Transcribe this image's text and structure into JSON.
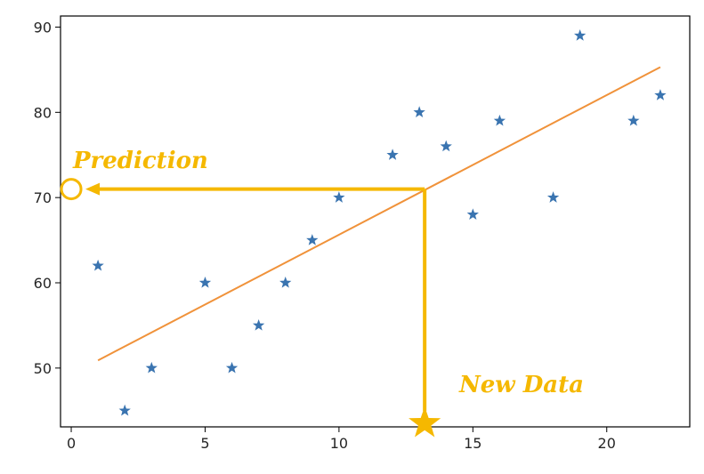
{
  "chart_data": {
    "type": "scatter",
    "title": "",
    "xlabel": "",
    "ylabel": "",
    "xlim": [
      -0.4,
      23.1
    ],
    "ylim": [
      43.1,
      91.3
    ],
    "xticks": [
      0,
      5,
      10,
      15,
      20
    ],
    "yticks": [
      50,
      60,
      70,
      80,
      90
    ],
    "grid": false,
    "series": [
      {
        "type": "scatter",
        "marker": "star",
        "color": "#3a74b0",
        "points": [
          {
            "x": 1,
            "y": 62
          },
          {
            "x": 2,
            "y": 45
          },
          {
            "x": 3,
            "y": 50
          },
          {
            "x": 5,
            "y": 60
          },
          {
            "x": 6,
            "y": 50
          },
          {
            "x": 7,
            "y": 55
          },
          {
            "x": 8,
            "y": 60
          },
          {
            "x": 9,
            "y": 65
          },
          {
            "x": 10,
            "y": 70
          },
          {
            "x": 12,
            "y": 75
          },
          {
            "x": 13,
            "y": 80
          },
          {
            "x": 14,
            "y": 76
          },
          {
            "x": 15,
            "y": 68
          },
          {
            "x": 16,
            "y": 79
          },
          {
            "x": 18,
            "y": 70
          },
          {
            "x": 19,
            "y": 89
          },
          {
            "x": 21,
            "y": 79
          },
          {
            "x": 22,
            "y": 82
          }
        ]
      },
      {
        "type": "line",
        "color": "#f0923a",
        "points": [
          {
            "x": 1,
            "y": 50.9
          },
          {
            "x": 22,
            "y": 85.3
          }
        ]
      }
    ],
    "annotations": {
      "color": "#f5b800",
      "new_data": {
        "label": "New Data",
        "x": 13.2,
        "y": 43.5
      },
      "prediction": {
        "label": "Prediction",
        "x": 0,
        "y": 71
      }
    }
  }
}
